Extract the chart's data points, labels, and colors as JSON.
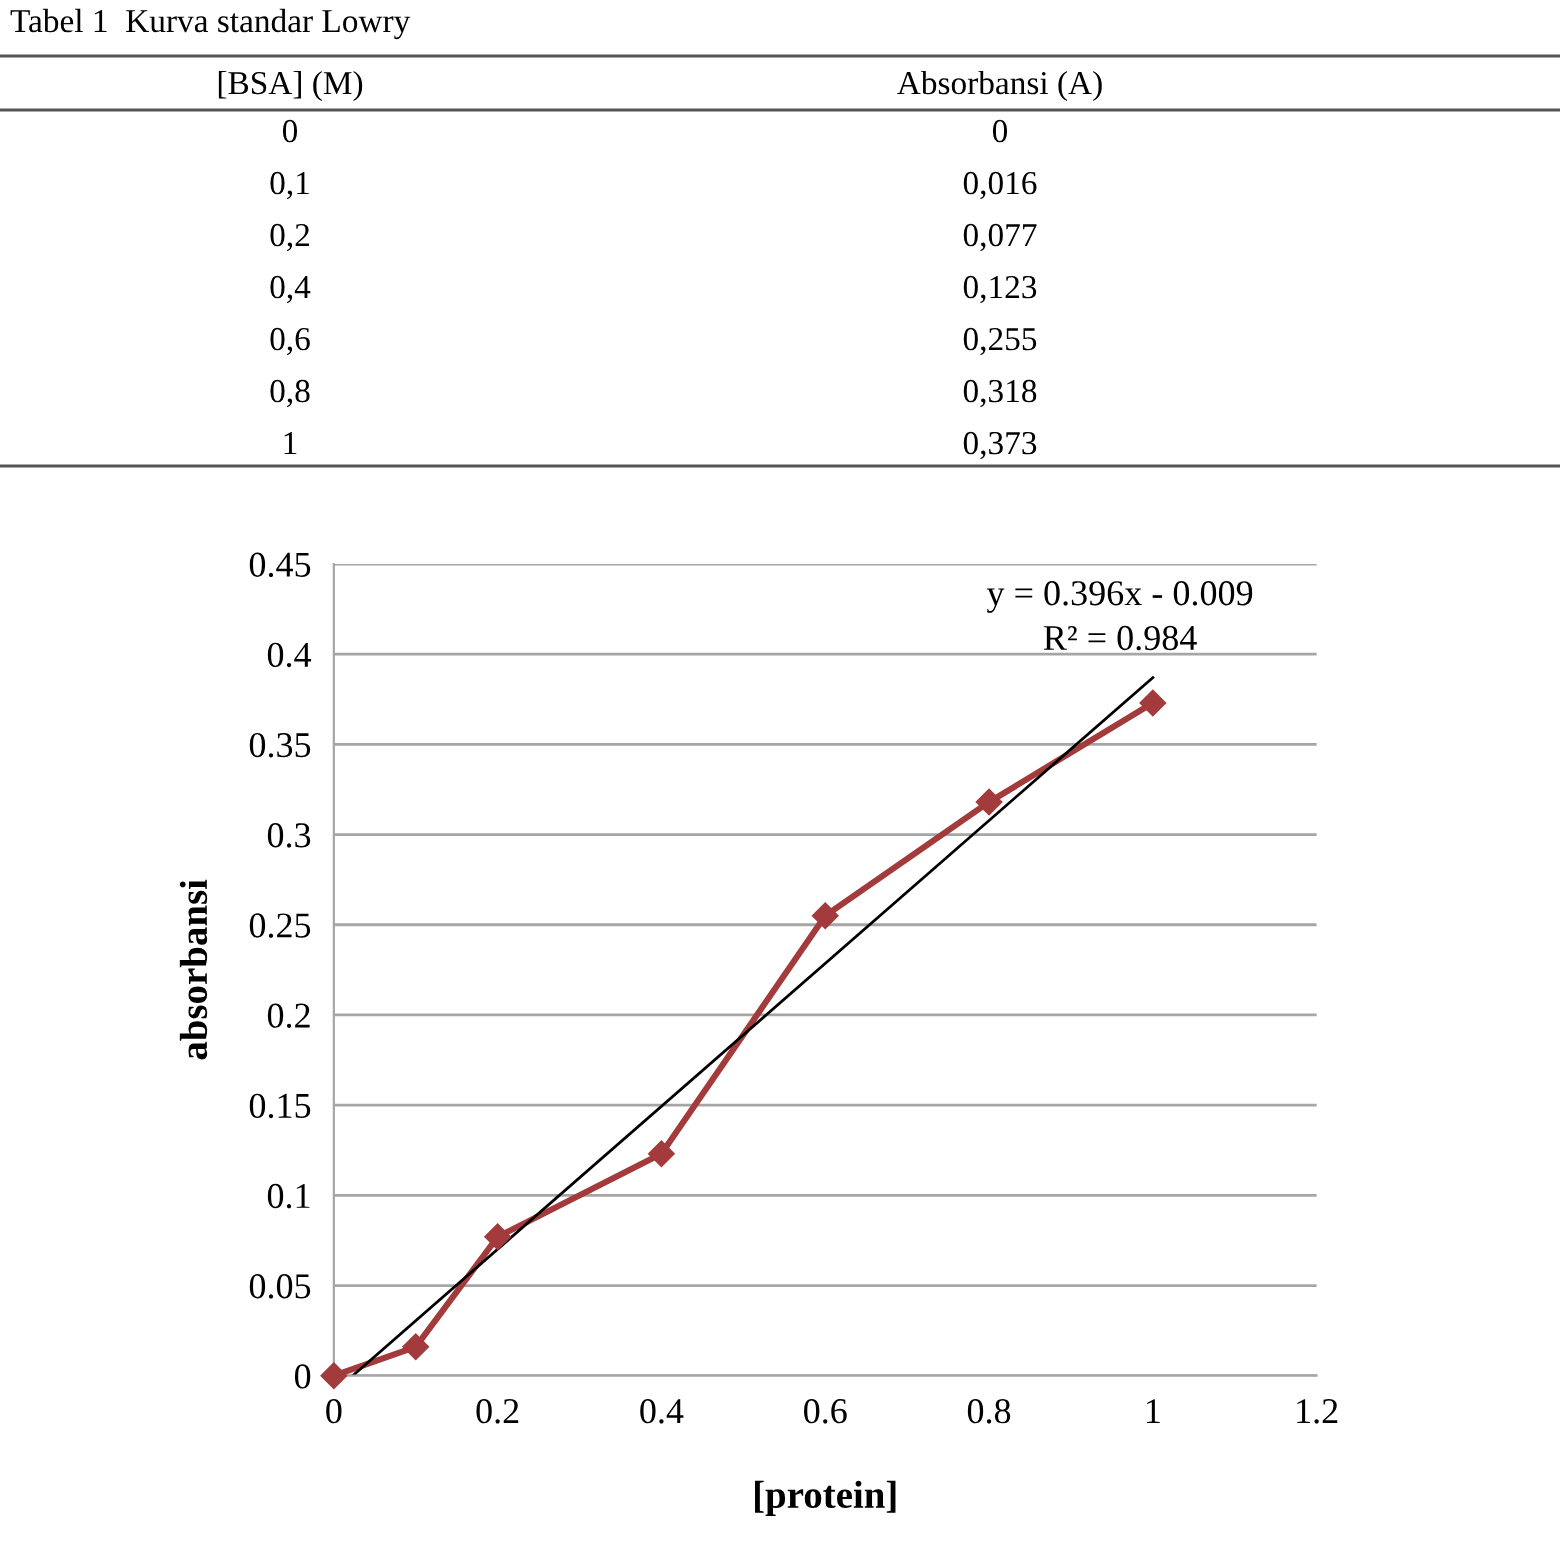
{
  "chart_data": {
    "type": "line",
    "title": "Tabel 1  Kurva standar Lowry",
    "xlabel": "[protein]",
    "ylabel": "absorbansi",
    "annotations": [
      "[BSA] (M)",
      "Absorbansi (A)",
      "0",
      "0,1",
      "0,2",
      "0,4",
      "0,6",
      "0,8",
      "1",
      "0",
      "0,016",
      "0,077",
      "0,123",
      "0,255",
      "0,318",
      "0,373",
      "y = 0.396x - 0.009",
      "R² = 0.984"
    ],
    "x": [
      0,
      0.1,
      0.2,
      0.4,
      0.6,
      0.8,
      1
    ],
    "series": [
      {
        "color": "#a33b3c",
        "marker": "diamond",
        "values": [
          0,
          0.016,
          0.077,
          0.123,
          0.255,
          0.318,
          0.373
        ]
      },
      {
        "type": "line",
        "color": "#000000",
        "marker": "none",
        "x": [
          0.023,
          1
        ],
        "values": [
          0,
          0.387
        ]
      }
    ],
    "xlim": [
      0,
      1.2
    ],
    "xticks": [
      0,
      0.2,
      0.4,
      0.6,
      0.8,
      1,
      1.2
    ],
    "ylim": [
      0,
      0.45
    ],
    "yticks": [
      0,
      0.05,
      0.1,
      0.15,
      0.2,
      0.25,
      0.3,
      0.35,
      0.4,
      0.45
    ],
    "grid": "y",
    "legend": false
  }
}
